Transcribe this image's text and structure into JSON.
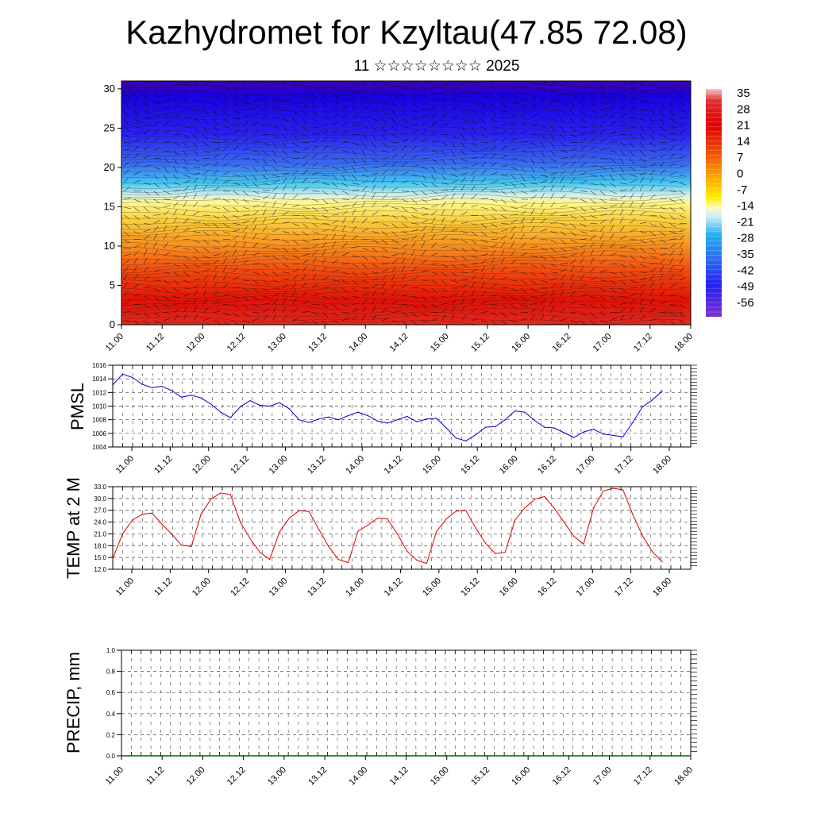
{
  "title": "Kazhydromet for Kzyltau(47.85 72.08)",
  "subtitle": "11 ☆☆☆☆☆☆☆☆ 2025",
  "chart_data": [
    {
      "type": "heatmap",
      "ylim": [
        0,
        31
      ],
      "yticks": [
        "0",
        "5",
        "10",
        "15",
        "20",
        "25",
        "30"
      ],
      "xticks": [
        "11.00",
        "11.12",
        "12.00",
        "12.12",
        "13.00",
        "13.12",
        "14.00",
        "14.12",
        "15.00",
        "15.12",
        "16.00",
        "16.12",
        "17.00",
        "17.12",
        "18.00"
      ],
      "colorbar": {
        "labels": [
          "35",
          "28",
          "21",
          "14",
          "7",
          "0",
          "-7",
          "-14",
          "-21",
          "-28",
          "-35",
          "-42",
          "-49",
          "-56"
        ],
        "range": [
          -60,
          40
        ]
      }
    },
    {
      "type": "line",
      "ylabel": "PMSL",
      "ylim": [
        1004,
        1016
      ],
      "yticks": [
        "1004",
        "1006",
        "1008",
        "1010",
        "1012",
        "1014",
        "1016"
      ],
      "xticks": [
        "11.00",
        "11.12",
        "12.00",
        "12.12",
        "13.00",
        "13.12",
        "14.00",
        "14.12",
        "15.00",
        "15.12",
        "16.00",
        "16.12",
        "17.00",
        "17.12",
        "18.00"
      ],
      "color": "#0000cc",
      "values": [
        1013.1,
        1014.7,
        1014.2,
        1013.2,
        1012.7,
        1012.9,
        1012.3,
        1011.3,
        1011.6,
        1011.2,
        1010.3,
        1009.1,
        1008.3,
        1009.9,
        1010.8,
        1010.1,
        1010.0,
        1010.5,
        1009.6,
        1008.0,
        1007.6,
        1008.1,
        1008.4,
        1008.0,
        1008.6,
        1009.1,
        1008.6,
        1007.8,
        1007.5,
        1008.0,
        1008.5,
        1007.7,
        1008.1,
        1008.2,
        1006.8,
        1005.3,
        1004.9,
        1005.8,
        1006.9,
        1007.0,
        1008.0,
        1009.3,
        1009.1,
        1007.9,
        1006.9,
        1006.8,
        1006.1,
        1005.4,
        1006.2,
        1006.6,
        1005.9,
        1005.7,
        1005.5,
        1007.6,
        1009.9,
        1010.9,
        1012.2
      ]
    },
    {
      "type": "line",
      "ylabel": "TEMP at 2 M",
      "ylim": [
        12,
        33
      ],
      "yticks": [
        "12.0",
        "15.0",
        "18.0",
        "21.0",
        "24.0",
        "27.0",
        "30.0",
        "33.0"
      ],
      "xticks": [
        "11.00",
        "11.12",
        "12.00",
        "12.12",
        "13.00",
        "13.12",
        "14.00",
        "14.12",
        "15.00",
        "15.12",
        "16.00",
        "16.12",
        "17.00",
        "17.12",
        "18.00"
      ],
      "color": "#dd0000",
      "values": [
        14.7,
        21.0,
        24.5,
        26.0,
        26.3,
        23.5,
        21.0,
        18.1,
        17.8,
        26.0,
        29.8,
        31.4,
        31.0,
        24.0,
        19.8,
        16.3,
        14.5,
        21.5,
        25.0,
        26.9,
        26.7,
        22.2,
        17.8,
        14.5,
        13.7,
        21.7,
        23.2,
        25.0,
        24.8,
        21.0,
        16.6,
        14.3,
        13.5,
        21.6,
        24.8,
        26.8,
        26.9,
        22.5,
        18.6,
        16.0,
        16.3,
        24.5,
        27.6,
        29.8,
        30.5,
        27.5,
        24.0,
        20.4,
        18.4,
        27.5,
        31.9,
        32.6,
        32.2,
        26.0,
        20.5,
        16.5,
        13.9
      ]
    },
    {
      "type": "line",
      "ylabel": "PRECIP, mm",
      "ylim": [
        0,
        1
      ],
      "yticks": [
        "0.0",
        "0.2",
        "0.4",
        "0.6",
        "0.8",
        "1.0"
      ],
      "xticks": [
        "11.00",
        "11.12",
        "12.00",
        "12.12",
        "13.00",
        "13.12",
        "14.00",
        "14.12",
        "15.00",
        "15.12",
        "16.00",
        "16.12",
        "17.00",
        "17.12",
        "18.00"
      ],
      "color": "#006600",
      "values": [
        0,
        0,
        0,
        0,
        0,
        0,
        0,
        0,
        0,
        0,
        0,
        0,
        0,
        0,
        0,
        0,
        0,
        0,
        0,
        0,
        0,
        0,
        0,
        0,
        0,
        0,
        0,
        0,
        0,
        0,
        0,
        0,
        0,
        0,
        0,
        0,
        0,
        0,
        0,
        0,
        0,
        0,
        0,
        0,
        0,
        0,
        0,
        0,
        0,
        0,
        0,
        0,
        0,
        0,
        0,
        0,
        0,
        0,
        0
      ]
    }
  ]
}
